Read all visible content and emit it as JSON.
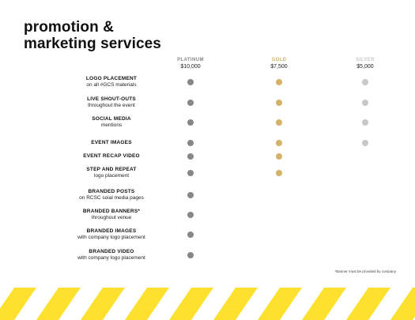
{
  "title": {
    "line1": "promotion &",
    "line2": "marketing services"
  },
  "colors": {
    "platinum": "#878787",
    "gold": "#d4b368",
    "silver": "#c8c8c8",
    "stripe": "#fde12e"
  },
  "tiers": [
    {
      "name": "PLATINUM",
      "price": "$10,000",
      "color": "#878787"
    },
    {
      "name": "GOLD",
      "price": "$7,500",
      "color": "#d4b368"
    },
    {
      "name": "SILVER",
      "price": "$5,000",
      "color": "#c8c8c8"
    }
  ],
  "rows": [
    {
      "main": "LOGO PLACEMENT",
      "sub": "on all #GCS materials",
      "included": [
        true,
        true,
        true
      ]
    },
    {
      "main": "LIVE SHOUT-OUTS",
      "sub": "throughout the event",
      "included": [
        true,
        true,
        true
      ]
    },
    {
      "main": "SOCIAL MEDIA",
      "sub": "mentions",
      "included": [
        true,
        true,
        true
      ]
    },
    {
      "main": "EVENT IMAGES",
      "sub": "",
      "included": [
        true,
        true,
        true
      ]
    },
    {
      "main": "EVENT RECAP VIDEO",
      "sub": "",
      "included": [
        true,
        true,
        false
      ]
    },
    {
      "main": "STEP AND REPEAT",
      "sub": "logo placement",
      "included": [
        true,
        true,
        false
      ]
    },
    {
      "main": "BRANDED POSTS",
      "sub": "on RCSC soial media pages",
      "included": [
        true,
        false,
        false
      ]
    },
    {
      "main": "BRANDED BANNERS*",
      "sub": "throughout venue",
      "included": [
        true,
        false,
        false
      ]
    },
    {
      "main": "BRANDED IMAGES",
      "sub": "with company logo placement",
      "included": [
        true,
        false,
        false
      ]
    },
    {
      "main": "BRANDED VIDEO",
      "sub": "with company logo placement",
      "included": [
        true,
        false,
        false
      ]
    }
  ],
  "footnote": "*Banner must be provided by company"
}
